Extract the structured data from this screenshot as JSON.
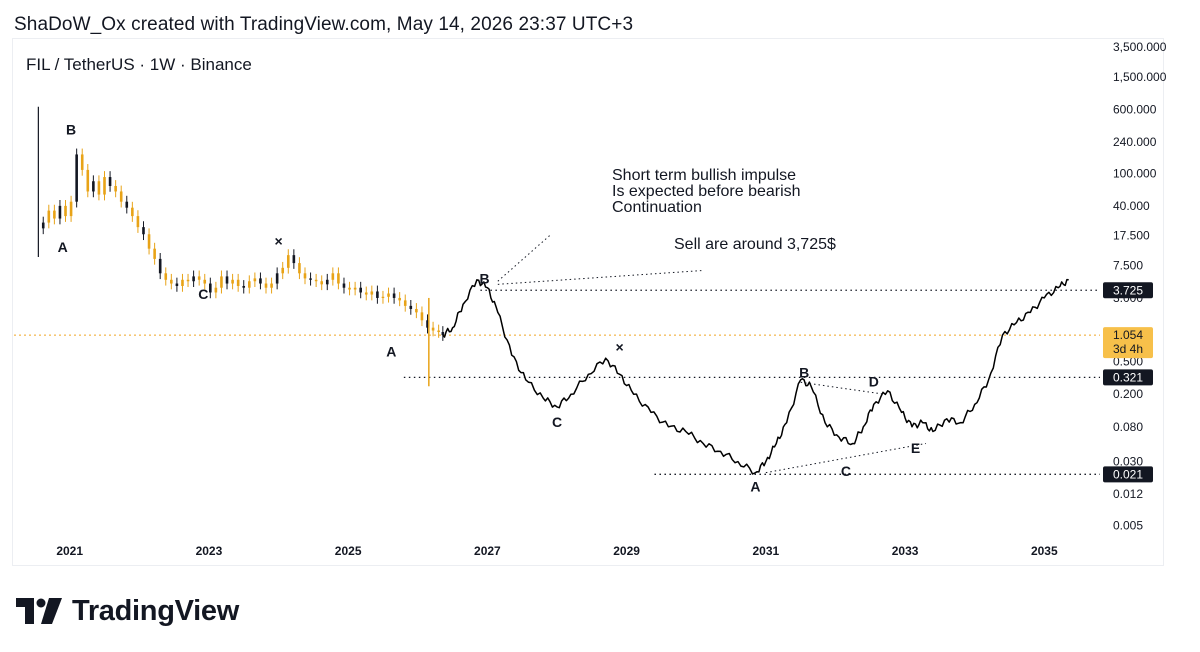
{
  "header": {
    "text": "ShaDoW_Ox created with TradingView.com, May 14, 2026 23:37 UTC+3"
  },
  "symbol": {
    "text": "FIL / TetherUS · 1W · Binance"
  },
  "brand": {
    "name": "TradingView",
    "icon": "tradingview-logo-icon"
  },
  "colors": {
    "price_line": "#f0a520",
    "candles": "#e8a317",
    "projection": "#000000",
    "tag_bg": "#131722",
    "current_tag_bg": "#f7c04a"
  },
  "chart_data": {
    "type": "line",
    "scale": "log",
    "ylim": [
      0.0035,
      4500
    ],
    "xlim": [
      2020.2,
      2035.8
    ],
    "grid": false,
    "y_ticks": [
      {
        "value": 3500,
        "label": "3,500.000"
      },
      {
        "value": 1500,
        "label": "1,500.000"
      },
      {
        "value": 600,
        "label": "600.000"
      },
      {
        "value": 240,
        "label": "240.000"
      },
      {
        "value": 100,
        "label": "100.000"
      },
      {
        "value": 40,
        "label": "40.000"
      },
      {
        "value": 17.5,
        "label": "17.500"
      },
      {
        "value": 7.5,
        "label": "7.500"
      },
      {
        "value": 3,
        "label": "3.000"
      },
      {
        "value": 0.5,
        "label": "0.500"
      },
      {
        "value": 0.2,
        "label": "0.200"
      },
      {
        "value": 0.08,
        "label": "0.080"
      },
      {
        "value": 0.03,
        "label": "0.030"
      },
      {
        "value": 0.012,
        "label": "0.012"
      },
      {
        "value": 0.005,
        "label": "0.005"
      }
    ],
    "x_ticks": [
      "2021",
      "2023",
      "2025",
      "2027",
      "2029",
      "2031",
      "2033",
      "2035"
    ],
    "x_tick_values": [
      2021,
      2023,
      2025,
      2027,
      2029,
      2031,
      2033,
      2035
    ],
    "price_tags": [
      {
        "value": 3.725,
        "label": "3.725",
        "style": "dark"
      },
      {
        "value": 1.054,
        "label": "1.054",
        "sub": "3d 4h",
        "style": "current"
      },
      {
        "value": 0.321,
        "label": "0.321",
        "style": "dark"
      },
      {
        "value": 0.021,
        "label": "0.021",
        "style": "dark"
      }
    ],
    "horizontal_levels": [
      {
        "value": 3.725,
        "from": 2026.9,
        "to": 2035.8,
        "style": "dotted"
      },
      {
        "value": 0.321,
        "from": 2025.8,
        "to": 2035.8,
        "style": "dotted"
      },
      {
        "value": 0.021,
        "from": 2029.4,
        "to": 2035.8,
        "style": "dotted"
      },
      {
        "value": 1.054,
        "from": 2020.2,
        "to": 2035.8,
        "style": "current"
      }
    ],
    "series": [
      {
        "kind": "candles",
        "x": [
          2020.62,
          2020.7,
          2020.78,
          2020.86,
          2020.94,
          2021.02,
          2021.1,
          2021.18,
          2021.26,
          2021.34,
          2021.42,
          2021.5,
          2021.58,
          2021.66,
          2021.74,
          2021.82,
          2021.9,
          2021.98,
          2022.06,
          2022.14,
          2022.22,
          2022.3,
          2022.38,
          2022.46,
          2022.54,
          2022.62,
          2022.7,
          2022.78,
          2022.86,
          2022.94,
          2023.02,
          2023.1,
          2023.18,
          2023.26,
          2023.34,
          2023.42,
          2023.5,
          2023.58,
          2023.66,
          2023.74,
          2023.82,
          2023.9,
          2023.98,
          2024.06,
          2024.14,
          2024.22,
          2024.3,
          2024.38,
          2024.46,
          2024.54,
          2024.62,
          2024.7,
          2024.78,
          2024.86,
          2024.94,
          2025.02,
          2025.1,
          2025.18,
          2025.26,
          2025.34,
          2025.42,
          2025.5,
          2025.58,
          2025.66,
          2025.74,
          2025.82,
          2025.9,
          2025.98,
          2026.06,
          2026.14,
          2026.22,
          2026.3,
          2026.36
        ],
        "y": [
          25,
          35,
          28,
          40,
          30,
          45,
          170,
          110,
          60,
          80,
          55,
          90,
          70,
          60,
          45,
          38,
          30,
          22,
          18,
          12,
          9,
          6,
          5,
          4.5,
          4.2,
          5,
          4.8,
          5.5,
          5,
          4.5,
          3.5,
          4,
          5.5,
          4.5,
          5,
          4.2,
          4,
          4.8,
          5.2,
          4.5,
          4,
          4.5,
          6,
          7,
          10,
          8,
          6,
          5.2,
          5,
          4.8,
          4.4,
          5,
          6,
          4.5,
          4,
          3.8,
          4,
          3.5,
          3.3,
          3.6,
          3,
          3.1,
          3.4,
          3,
          2.8,
          2.4,
          2.2,
          2,
          1.6,
          1.3,
          1.2,
          1.15,
          1.054
        ]
      },
      {
        "kind": "projection",
        "x": [
          2026.36,
          2026.5,
          2026.65,
          2026.85,
          2027.0,
          2027.15,
          2027.35,
          2027.55,
          2027.8,
          2028.0,
          2028.2,
          2028.45,
          2028.7,
          2028.9,
          2029.1,
          2029.35,
          2029.6,
          2029.85,
          2030.1,
          2030.35,
          2030.6,
          2030.85,
          2031.0,
          2031.15,
          2031.3,
          2031.5,
          2031.65,
          2031.85,
          2032.05,
          2032.25,
          2032.4,
          2032.55,
          2032.75,
          2032.95,
          2033.1,
          2033.25,
          2033.4,
          2033.6,
          2033.8,
          2034.0,
          2034.2,
          2034.4,
          2034.6,
          2034.8,
          2035.0,
          2035.2,
          2035.35
        ],
        "y": [
          1.054,
          1.3,
          2.5,
          5,
          4,
          2,
          0.6,
          0.3,
          0.18,
          0.14,
          0.2,
          0.35,
          0.55,
          0.35,
          0.2,
          0.12,
          0.08,
          0.07,
          0.05,
          0.04,
          0.03,
          0.022,
          0.03,
          0.05,
          0.09,
          0.3,
          0.25,
          0.09,
          0.06,
          0.05,
          0.08,
          0.15,
          0.22,
          0.12,
          0.08,
          0.09,
          0.07,
          0.1,
          0.09,
          0.15,
          0.3,
          1.054,
          1.5,
          2,
          3,
          4,
          5
        ]
      }
    ],
    "wave_labels": [
      {
        "text": "B",
        "x": 2021.02,
        "y": 300
      },
      {
        "text": "A",
        "x": 2020.9,
        "y": 11
      },
      {
        "text": "C",
        "x": 2022.92,
        "y": 2.9
      },
      {
        "text": "×",
        "x": 2024.0,
        "y": 13
      },
      {
        "text": "B",
        "x": 2026.96,
        "y": 4.5
      },
      {
        "text": "A",
        "x": 2025.62,
        "y": 0.58
      },
      {
        "text": "C",
        "x": 2028.0,
        "y": 0.08
      },
      {
        "text": "×",
        "x": 2028.9,
        "y": 0.66
      },
      {
        "text": "B",
        "x": 2031.55,
        "y": 0.32
      },
      {
        "text": "D",
        "x": 2032.55,
        "y": 0.25
      },
      {
        "text": "E",
        "x": 2033.15,
        "y": 0.038
      },
      {
        "text": "C",
        "x": 2032.15,
        "y": 0.02
      },
      {
        "text": "A",
        "x": 2030.85,
        "y": 0.013
      }
    ],
    "annotations": [
      {
        "lines": [
          "Short term bullish impulse",
          "Is expected before bearish",
          "Continuation"
        ]
      },
      {
        "text": "Sell are around 3,725$"
      }
    ]
  }
}
